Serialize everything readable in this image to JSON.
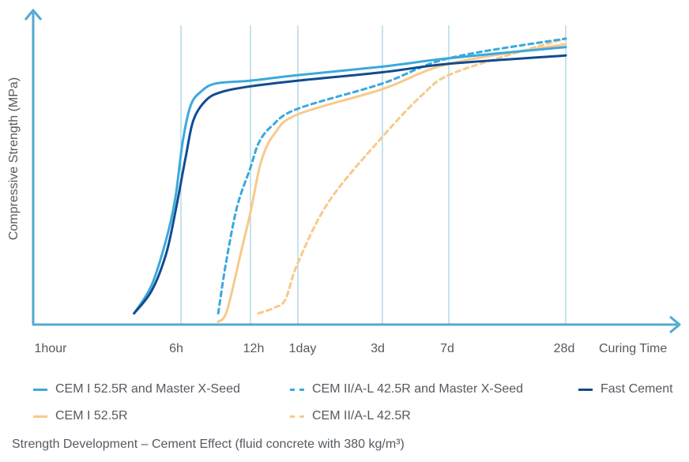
{
  "chart_data": {
    "type": "line",
    "title": "",
    "ylabel": "Compressive Strength (MPa)",
    "xlabel": "Curing Time",
    "x_ticks": [
      "1hour",
      "6h",
      "12h",
      "1day",
      "3d",
      "7d",
      "28d"
    ],
    "gridlines_at": [
      "6h",
      "12h",
      "1day",
      "3d",
      "7d",
      "28d"
    ],
    "grid": true,
    "legend": "bottom",
    "y_ticks_shown": false,
    "series": [
      {
        "name": "CEM I 52.5R and Master X-Seed",
        "color": "#3ba9dd",
        "style": "solid",
        "points": [
          [
            3.4,
            0.04
          ],
          [
            4.2,
            0.14
          ],
          [
            5.0,
            0.3
          ],
          [
            5.6,
            0.45
          ],
          [
            6.1,
            0.65
          ],
          [
            6.6,
            0.78
          ],
          [
            7.3,
            0.83
          ],
          [
            8.5,
            0.86
          ],
          [
            12,
            0.87
          ],
          [
            24,
            0.89
          ],
          [
            72,
            0.92
          ],
          [
            168,
            0.95
          ],
          [
            672,
            0.99
          ]
        ]
      },
      {
        "name": "CEM II/A-L 42.5R and Master X-Seed",
        "color": "#3ba9dd",
        "style": "dashed",
        "points": [
          [
            8.7,
            0.04
          ],
          [
            9.4,
            0.22
          ],
          [
            10.5,
            0.42
          ],
          [
            12,
            0.56
          ],
          [
            13.6,
            0.65
          ],
          [
            16.5,
            0.71
          ],
          [
            24,
            0.77
          ],
          [
            72,
            0.86
          ],
          [
            168,
            0.95
          ],
          [
            672,
            1.02
          ]
        ]
      },
      {
        "name": "Fast Cement",
        "color": "#114b91",
        "style": "solid",
        "points": [
          [
            3.4,
            0.04
          ],
          [
            4.2,
            0.12
          ],
          [
            5.0,
            0.25
          ],
          [
            5.6,
            0.4
          ],
          [
            6.3,
            0.6
          ],
          [
            6.8,
            0.73
          ],
          [
            7.7,
            0.8
          ],
          [
            9.0,
            0.83
          ],
          [
            12,
            0.85
          ],
          [
            24,
            0.87
          ],
          [
            72,
            0.9
          ],
          [
            168,
            0.93
          ],
          [
            672,
            0.96
          ]
        ]
      },
      {
        "name": "CEM I 52.5R",
        "color": "#f8c98a",
        "style": "solid",
        "points": [
          [
            8.7,
            0.01
          ],
          [
            9.5,
            0.05
          ],
          [
            11.0,
            0.27
          ],
          [
            12,
            0.4
          ],
          [
            14.0,
            0.58
          ],
          [
            17.0,
            0.68
          ],
          [
            24,
            0.75
          ],
          [
            72,
            0.84
          ],
          [
            168,
            0.93
          ],
          [
            672,
            1.0
          ]
        ]
      },
      {
        "name": "CEM II/A-L 42.5R",
        "color": "#f8c98a",
        "style": "dashed",
        "points": [
          [
            13.5,
            0.04
          ],
          [
            17.0,
            0.06
          ],
          [
            20.0,
            0.09
          ],
          [
            24,
            0.22
          ],
          [
            36,
            0.44
          ],
          [
            72,
            0.67
          ],
          [
            120,
            0.82
          ],
          [
            168,
            0.89
          ],
          [
            336,
            0.96
          ],
          [
            672,
            1.02
          ]
        ]
      }
    ]
  },
  "caption": "Strength Development – Cement Effect (fluid concrete with 380 kg/m³)"
}
